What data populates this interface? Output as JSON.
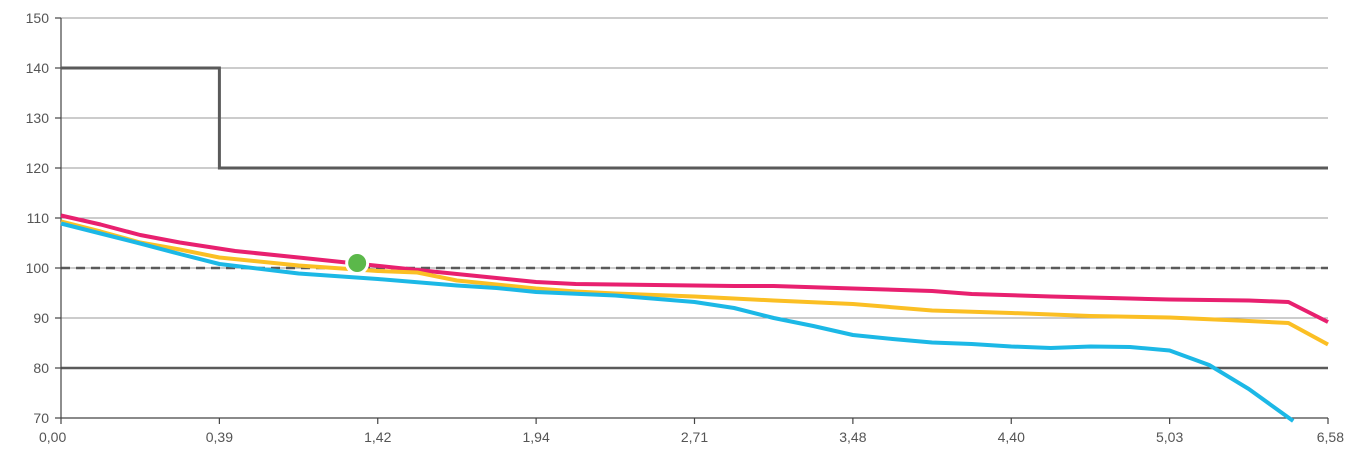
{
  "chart_data": {
    "type": "line",
    "title": "",
    "xlabel": "",
    "ylabel": "",
    "ylim": [
      70,
      150
    ],
    "y_ticks": [
      "70",
      "80",
      "90",
      "100",
      "110",
      "120",
      "130",
      "140",
      "150"
    ],
    "x_tick_labels": [
      "0,00",
      "0,39",
      "1,42",
      "1,94",
      "2,71",
      "3,48",
      "4,40",
      "5,03",
      "6,58"
    ],
    "grid": true,
    "legend": "none",
    "colors": {
      "limit": "#5a5a5a",
      "reference": "#5a5a5a",
      "grid": "#9a9a9a",
      "magenta": "#e8206f",
      "yellow": "#fbbf24",
      "cyan": "#1cb8e6",
      "marker": "#5bb84a"
    },
    "reference_lines": [
      {
        "y": 100,
        "style": "dashed"
      },
      {
        "y": 80,
        "style": "solid"
      }
    ],
    "series": [
      {
        "color_key": "limit",
        "style": "step",
        "points": [
          [
            0,
            140
          ],
          [
            1,
            140
          ],
          [
            1,
            120
          ],
          [
            8,
            120
          ]
        ]
      },
      {
        "color_key": "magenta",
        "points": [
          [
            0,
            110.5
          ],
          [
            0.25,
            108.7
          ],
          [
            0.5,
            106.6
          ],
          [
            0.75,
            105.1
          ],
          [
            1.1,
            103.4
          ],
          [
            1.5,
            102.1
          ],
          [
            2.1,
            100.1
          ],
          [
            2.5,
            98.8
          ],
          [
            3.0,
            97.2
          ],
          [
            3.25,
            96.8
          ],
          [
            3.75,
            96.6
          ],
          [
            4.25,
            96.4
          ],
          [
            4.5,
            96.4
          ],
          [
            5.0,
            95.9
          ],
          [
            5.5,
            95.4
          ],
          [
            5.75,
            94.8
          ],
          [
            6.25,
            94.3
          ],
          [
            6.75,
            93.9
          ],
          [
            7.0,
            93.7
          ],
          [
            7.5,
            93.5
          ],
          [
            7.75,
            93.2
          ],
          [
            8.0,
            89.2
          ]
        ]
      },
      {
        "color_key": "yellow",
        "points": [
          [
            0,
            109.3
          ],
          [
            0.25,
            107.3
          ],
          [
            0.5,
            105.1
          ],
          [
            0.75,
            103.7
          ],
          [
            1.0,
            102.1
          ],
          [
            1.5,
            100.5
          ],
          [
            2.0,
            99.4
          ],
          [
            2.25,
            99.1
          ],
          [
            2.5,
            97.5
          ],
          [
            3.0,
            95.9
          ],
          [
            3.25,
            95.3
          ],
          [
            3.5,
            94.9
          ],
          [
            4.0,
            94.3
          ],
          [
            4.5,
            93.5
          ],
          [
            5.0,
            92.8
          ],
          [
            5.5,
            91.5
          ],
          [
            6.0,
            91.0
          ],
          [
            6.5,
            90.4
          ],
          [
            7.0,
            90.1
          ],
          [
            7.5,
            89.4
          ],
          [
            7.75,
            89.0
          ],
          [
            8.0,
            84.7
          ]
        ]
      },
      {
        "color_key": "cyan",
        "points": [
          [
            0,
            108.9
          ],
          [
            0.25,
            106.9
          ],
          [
            0.5,
            104.9
          ],
          [
            0.75,
            102.8
          ],
          [
            1.0,
            100.8
          ],
          [
            1.5,
            98.9
          ],
          [
            2.0,
            97.8
          ],
          [
            2.5,
            96.5
          ],
          [
            2.75,
            96.0
          ],
          [
            3.0,
            95.2
          ],
          [
            3.5,
            94.5
          ],
          [
            4.0,
            93.2
          ],
          [
            4.25,
            92.0
          ],
          [
            4.5,
            90.0
          ],
          [
            4.75,
            88.4
          ],
          [
            5.0,
            86.6
          ],
          [
            5.25,
            85.8
          ],
          [
            5.5,
            85.1
          ],
          [
            5.75,
            84.8
          ],
          [
            6.0,
            84.3
          ],
          [
            6.25,
            84.0
          ],
          [
            6.5,
            84.3
          ],
          [
            6.75,
            84.2
          ],
          [
            7.0,
            83.5
          ],
          [
            7.25,
            80.6
          ],
          [
            7.5,
            75.8
          ],
          [
            7.78,
            69.4
          ]
        ]
      }
    ],
    "markers": [
      {
        "x": 1.87,
        "y": 101,
        "color_key": "marker"
      }
    ]
  }
}
